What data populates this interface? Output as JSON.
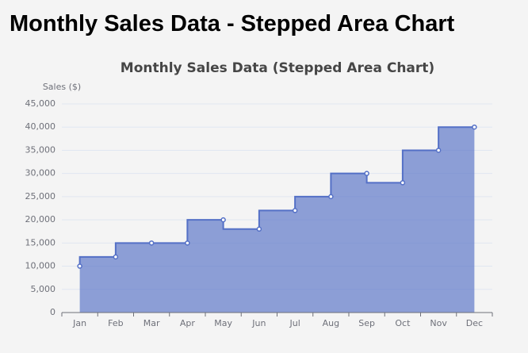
{
  "page_title": "Monthly Sales Data - Stepped Area Chart",
  "chart_data": {
    "type": "stepped-area",
    "title": "Monthly Sales Data (Stepped Area Chart)",
    "y_label": "Sales ($)",
    "categories": [
      "Jan",
      "Feb",
      "Mar",
      "Apr",
      "May",
      "Jun",
      "Jul",
      "Aug",
      "Sep",
      "Oct",
      "Nov",
      "Dec"
    ],
    "values": [
      10000,
      12000,
      15000,
      15000,
      20000,
      18000,
      22000,
      25000,
      30000,
      28000,
      35000,
      40000
    ],
    "color": "#5470c6",
    "ylim": [
      0,
      45000
    ],
    "yticks": [
      0,
      {
        "value": 5000,
        "label": "5,000"
      },
      {
        "value": 10000,
        "label": "10,000"
      },
      {
        "value": 15000,
        "label": "15,000"
      },
      {
        "value": 20000,
        "label": "20,000"
      },
      {
        "value": 25000,
        "label": "25,000"
      },
      {
        "value": 30000,
        "label": "30,000"
      },
      {
        "value": 35000,
        "label": "35,000"
      },
      {
        "value": 40000,
        "label": "40,000"
      },
      {
        "value": 45000,
        "label": "45,000"
      }
    ],
    "grid": true
  }
}
